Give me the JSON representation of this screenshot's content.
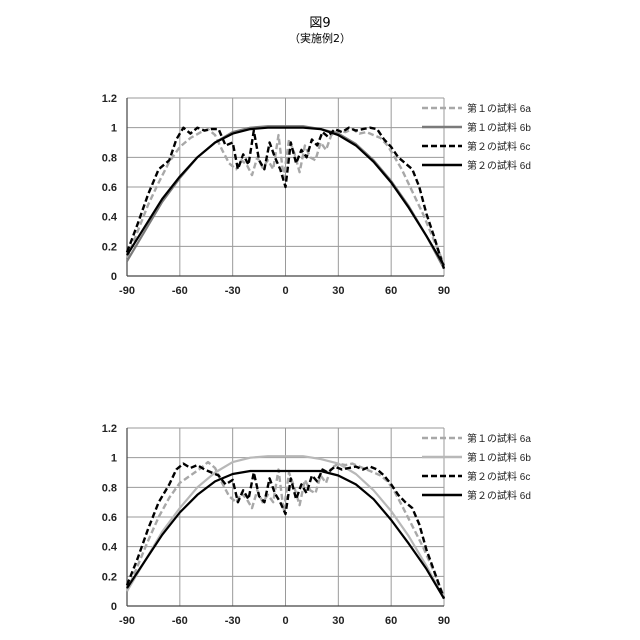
{
  "figure": {
    "title": "図9",
    "subtitle": "（実施例2）"
  },
  "chart_data": [
    {
      "type": "line",
      "title": "",
      "xlabel": "",
      "ylabel": "",
      "xlim": [
        -90,
        90
      ],
      "ylim": [
        0,
        1.2
      ],
      "xticks": [
        -90,
        -60,
        -30,
        0,
        30,
        60,
        90
      ],
      "yticks": [
        0,
        0.2,
        0.4,
        0.6,
        0.8,
        1,
        1.2
      ],
      "grid": "vertical",
      "legend": "top-right",
      "series": [
        {
          "name": "第１の試料 6a",
          "color": "#a8a8a8",
          "dash": "dashed",
          "x": [
            -90,
            -84,
            -78,
            -72,
            -66,
            -60,
            -54,
            -48,
            -44,
            -40,
            -36,
            -32,
            -28,
            -25,
            -22,
            -19,
            -16,
            -13,
            -10,
            -7,
            -4,
            -1,
            2,
            5,
            8,
            11,
            14,
            17,
            20,
            23,
            26,
            30,
            34,
            38,
            42,
            46,
            50,
            54,
            58,
            62,
            66,
            72,
            78,
            84,
            90
          ],
          "y": [
            0.12,
            0.3,
            0.48,
            0.63,
            0.77,
            0.87,
            0.93,
            0.97,
            0.99,
            0.95,
            0.85,
            0.76,
            0.72,
            0.78,
            0.75,
            0.68,
            0.8,
            0.73,
            0.78,
            0.72,
            0.95,
            0.66,
            0.92,
            0.83,
            0.7,
            0.88,
            0.8,
            0.78,
            0.9,
            0.85,
            0.95,
            0.98,
            0.97,
            0.99,
            0.96,
            0.97,
            0.95,
            0.93,
            0.88,
            0.8,
            0.72,
            0.57,
            0.42,
            0.25,
            0.08
          ]
        },
        {
          "name": "第１の試料 6b",
          "color": "#7a7a7a",
          "dash": "solid",
          "x": [
            -90,
            -80,
            -70,
            -60,
            -50,
            -40,
            -30,
            -20,
            -10,
            0,
            10,
            20,
            30,
            40,
            50,
            60,
            70,
            80,
            90
          ],
          "y": [
            0.1,
            0.3,
            0.5,
            0.66,
            0.8,
            0.9,
            0.97,
            1.0,
            1.01,
            1.01,
            1.01,
            0.99,
            0.96,
            0.89,
            0.78,
            0.64,
            0.47,
            0.27,
            0.05
          ]
        },
        {
          "name": "第２の試料 6c",
          "color": "#000000",
          "dash": "dashed",
          "x": [
            -90,
            -84,
            -78,
            -72,
            -66,
            -62,
            -58,
            -54,
            -50,
            -46,
            -42,
            -38,
            -34,
            -30,
            -27,
            -24,
            -21,
            -18,
            -15,
            -12,
            -9,
            -6,
            -3,
            0,
            3,
            6,
            9,
            12,
            15,
            18,
            21,
            24,
            28,
            32,
            36,
            40,
            44,
            48,
            52,
            56,
            60,
            64,
            68,
            72,
            76,
            80,
            84,
            90
          ],
          "y": [
            0.16,
            0.35,
            0.55,
            0.72,
            0.78,
            0.92,
            1.0,
            0.96,
            1.0,
            0.98,
            0.99,
            0.99,
            0.88,
            0.9,
            0.72,
            0.82,
            0.75,
            0.98,
            0.78,
            0.72,
            0.9,
            0.8,
            0.72,
            0.6,
            0.9,
            0.76,
            0.85,
            0.8,
            0.92,
            0.88,
            0.97,
            0.94,
            0.99,
            0.97,
            1.0,
            0.98,
            0.99,
            1.0,
            0.99,
            0.92,
            0.87,
            0.8,
            0.76,
            0.72,
            0.6,
            0.42,
            0.28,
            0.05
          ]
        },
        {
          "name": "第２の試料 6d",
          "color": "#000000",
          "dash": "solid",
          "x": [
            -90,
            -80,
            -70,
            -60,
            -50,
            -40,
            -30,
            -20,
            -10,
            0,
            10,
            20,
            30,
            40,
            50,
            60,
            70,
            80,
            90
          ],
          "y": [
            0.14,
            0.33,
            0.52,
            0.67,
            0.8,
            0.9,
            0.96,
            0.99,
            1.0,
            1.0,
            1.0,
            0.99,
            0.95,
            0.88,
            0.77,
            0.63,
            0.46,
            0.27,
            0.07
          ]
        }
      ]
    },
    {
      "type": "line",
      "title": "",
      "xlabel": "",
      "ylabel": "",
      "xlim": [
        -90,
        90
      ],
      "ylim": [
        0,
        1.2
      ],
      "xticks": [
        -90,
        -60,
        -30,
        0,
        30,
        60,
        90
      ],
      "yticks": [
        0,
        0.2,
        0.4,
        0.6,
        0.8,
        1,
        1.2
      ],
      "grid": "vertical",
      "legend": "top-right",
      "series": [
        {
          "name": "第１の試料 6a",
          "color": "#a8a8a8",
          "dash": "dashed",
          "x": [
            -90,
            -84,
            -78,
            -72,
            -66,
            -60,
            -54,
            -48,
            -44,
            -40,
            -36,
            -32,
            -28,
            -25,
            -22,
            -19,
            -16,
            -13,
            -10,
            -7,
            -4,
            -1,
            2,
            5,
            8,
            11,
            14,
            17,
            20,
            23,
            26,
            30,
            34,
            38,
            42,
            46,
            50,
            54,
            58,
            62,
            66,
            72,
            78,
            84,
            90
          ],
          "y": [
            0.1,
            0.27,
            0.44,
            0.6,
            0.73,
            0.83,
            0.88,
            0.93,
            0.97,
            0.93,
            0.83,
            0.74,
            0.7,
            0.76,
            0.72,
            0.66,
            0.78,
            0.7,
            0.75,
            0.7,
            0.92,
            0.64,
            0.9,
            0.8,
            0.68,
            0.85,
            0.78,
            0.76,
            0.88,
            0.83,
            0.93,
            0.96,
            0.95,
            0.96,
            0.94,
            0.92,
            0.9,
            0.88,
            0.84,
            0.77,
            0.68,
            0.54,
            0.4,
            0.24,
            0.06
          ]
        },
        {
          "name": "第１の試料 6b",
          "color": "#b8b8b8",
          "dash": "solid",
          "x": [
            -90,
            -80,
            -70,
            -60,
            -50,
            -40,
            -30,
            -20,
            -10,
            0,
            10,
            20,
            30,
            40,
            50,
            60,
            70,
            80,
            90
          ],
          "y": [
            0.1,
            0.3,
            0.5,
            0.66,
            0.8,
            0.9,
            0.97,
            1.0,
            1.01,
            1.01,
            1.01,
            0.99,
            0.96,
            0.89,
            0.78,
            0.64,
            0.47,
            0.27,
            0.05
          ]
        },
        {
          "name": "第２の試料 6c",
          "color": "#000000",
          "dash": "dashed",
          "x": [
            -90,
            -84,
            -78,
            -72,
            -66,
            -62,
            -58,
            -54,
            -50,
            -46,
            -42,
            -38,
            -34,
            -30,
            -27,
            -24,
            -21,
            -18,
            -15,
            -12,
            -9,
            -6,
            -3,
            0,
            3,
            6,
            9,
            12,
            15,
            18,
            21,
            24,
            28,
            32,
            36,
            40,
            44,
            48,
            52,
            56,
            60,
            64,
            68,
            72,
            76,
            80,
            84,
            90
          ],
          "y": [
            0.14,
            0.32,
            0.52,
            0.7,
            0.82,
            0.92,
            0.96,
            0.93,
            0.95,
            0.92,
            0.9,
            0.88,
            0.82,
            0.85,
            0.7,
            0.78,
            0.72,
            0.9,
            0.74,
            0.7,
            0.86,
            0.76,
            0.7,
            0.62,
            0.86,
            0.72,
            0.82,
            0.76,
            0.88,
            0.84,
            0.92,
            0.9,
            0.94,
            0.92,
            0.93,
            0.94,
            0.92,
            0.94,
            0.92,
            0.88,
            0.82,
            0.75,
            0.7,
            0.66,
            0.55,
            0.38,
            0.25,
            0.05
          ]
        },
        {
          "name": "第２の試料 6d",
          "color": "#000000",
          "dash": "solid",
          "x": [
            -90,
            -80,
            -70,
            -60,
            -50,
            -40,
            -30,
            -20,
            -10,
            0,
            10,
            20,
            30,
            40,
            50,
            60,
            70,
            80,
            90
          ],
          "y": [
            0.12,
            0.3,
            0.48,
            0.63,
            0.75,
            0.84,
            0.89,
            0.91,
            0.91,
            0.91,
            0.91,
            0.91,
            0.88,
            0.82,
            0.72,
            0.58,
            0.42,
            0.25,
            0.05
          ]
        }
      ]
    }
  ]
}
